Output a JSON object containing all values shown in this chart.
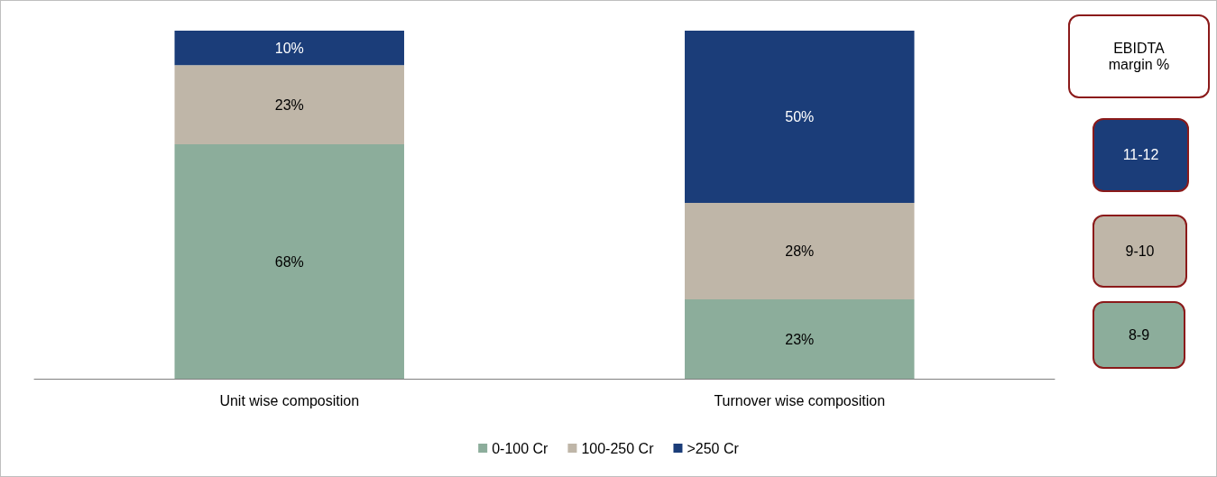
{
  "chart_data": {
    "type": "bar",
    "stacked": true,
    "categories": [
      "Unit wise composition",
      "Turnover wise composition"
    ],
    "series": [
      {
        "name": "0-100 Cr",
        "color": "#8cad9b",
        "values": [
          68,
          23
        ],
        "value_labels": [
          "68%",
          "23%"
        ]
      },
      {
        "name": "100-250 Cr",
        "color": "#bfb6a8",
        "values": [
          23,
          28
        ],
        "value_labels": [
          "23%",
          "28%"
        ]
      },
      {
        "name": ">250 Cr",
        "color": "#1b3d79",
        "values": [
          10,
          50
        ],
        "value_labels": [
          "10%",
          "50%"
        ]
      }
    ],
    "legend": "bottom",
    "annotations": [
      "EBIDTA margin %",
      "11-12",
      "9-10",
      "8-9"
    ]
  }
}
